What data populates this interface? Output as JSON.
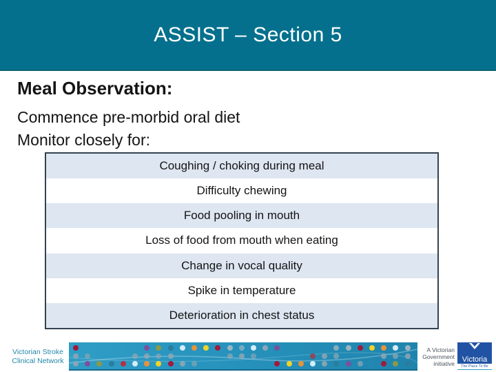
{
  "header": {
    "title": "ASSIST – Section 5"
  },
  "body": {
    "heading": "Meal Observation:",
    "lines": [
      "Commence pre-morbid oral diet",
      "Monitor closely for:"
    ],
    "table": {
      "rows": [
        "Coughing / choking during meal",
        "Difficulty chewing",
        "Food pooling in mouth",
        "Loss of food from mouth when eating",
        "Change in vocal quality",
        "Spike in temperature",
        "Deterioration in chest status"
      ],
      "band_color": "#dde6f1",
      "alt_color": "#ffffff",
      "border_color": "#33424f"
    }
  },
  "footer": {
    "org": {
      "line1": "Victorian Stroke",
      "line2": "Clinical Network",
      "color": "#2387a9"
    },
    "initiative": [
      "A Victorian",
      "Government",
      "initiative"
    ],
    "logo": {
      "name": "Victoria",
      "tagline": "The Place To Be",
      "bg": "#2053a4"
    },
    "banner": {
      "bg_from": "#2f9dc5",
      "bg_to": "#1f84ad",
      "dot_rows": [
        [
          "#a01a3c",
          null,
          null,
          null,
          null,
          null,
          "#7a519e",
          "#8a9a4a",
          "#2b7d9e",
          "#d6ecf7",
          "#e8923a",
          "#f0d428",
          "#a01a3c",
          "rgba(175,188,196,0.85)",
          "rgba(175,188,196,0.6)",
          "#d6ecf7",
          "rgba(155,172,182,0.85)",
          "#7a519e",
          null,
          null,
          null,
          null,
          "rgba(175,188,196,0.7)",
          "rgba(175,188,196,0.85)",
          "#a01a3c",
          "#f0d428",
          "#e8923a",
          "#d6ecf7",
          "rgba(175,188,196,0.85)"
        ],
        [
          "rgba(150,168,178,0.8)",
          "rgba(150,168,178,0.6)",
          null,
          null,
          null,
          "rgba(150,168,178,0.7)",
          "rgba(150,168,178,0.8)",
          "rgba(150,168,178,0.6)",
          "rgba(150,168,178,0.8)",
          null,
          null,
          null,
          null,
          "rgba(150,168,178,0.7)",
          "rgba(150,168,178,0.8)",
          "rgba(150,168,178,0.6)",
          null,
          null,
          null,
          null,
          "#8c4a5a",
          "rgba(150,168,178,0.8)",
          "rgba(150,168,178,0.7)",
          null,
          null,
          null,
          "rgba(150,168,178,0.8)",
          "rgba(150,168,178,0.7)",
          "rgba(150,168,178,0.8)"
        ],
        [
          "rgba(150,168,178,0.85)",
          "#7a519e",
          "#8a9a4a",
          "#2b7d9e",
          "#b03344",
          "#d6ecf7",
          "#e8923a",
          "#f0d428",
          "#a01a3c",
          "rgba(150,168,178,0.85)",
          "rgba(150,168,178,0.6)",
          null,
          null,
          null,
          null,
          null,
          null,
          "#a01a3c",
          "#f0d428",
          "#e8923a",
          "#d6ecf7",
          "rgba(150,168,178,0.85)",
          "#2b7d9e",
          "#7a519e",
          "rgba(150,168,178,0.7)",
          null,
          "#a01a3c",
          "#8a9a4a",
          "#2b7d9e"
        ]
      ]
    }
  },
  "colors": {
    "header_bg": "#04708d",
    "header_text": "#ffffff",
    "body_text": "#141414"
  }
}
